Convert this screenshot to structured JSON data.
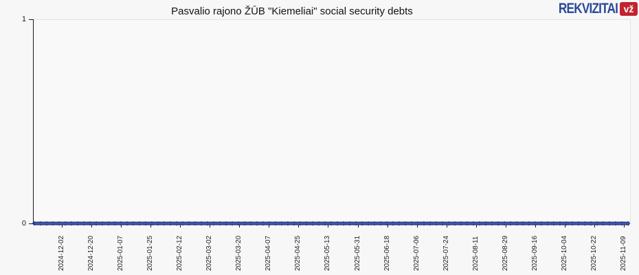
{
  "logo": {
    "brand": "REKVIZITAI",
    "badge": "vž",
    "brand_color": "#2a4a99",
    "badge_color": "#c2232e"
  },
  "chart_data": {
    "type": "line",
    "title": "Pasvalio rajono ŽŪB \"Kiemeliai\" social security debts",
    "categories": [
      "2024-12-02",
      "2024-12-20",
      "2025-01-07",
      "2025-01-25",
      "2025-02-12",
      "2025-03-02",
      "2025-03-20",
      "2025-04-07",
      "2025-04-25",
      "2025-05-13",
      "2025-05-31",
      "2025-06-18",
      "2025-07-06",
      "2025-07-24",
      "2025-08-11",
      "2025-08-29",
      "2025-09-16",
      "2025-10-04",
      "2025-10-22",
      "2025-11-09"
    ],
    "values": [
      0,
      0,
      0,
      0,
      0,
      0,
      0,
      0,
      0,
      0,
      0,
      0,
      0,
      0,
      0,
      0,
      0,
      0,
      0,
      0
    ],
    "xlabel": "",
    "ylabel": "",
    "ylim": [
      0,
      1
    ],
    "yticks": [
      "0",
      "1"
    ],
    "grid": false,
    "legend": "none",
    "line_color": "#4358a8",
    "line_edge_color": "#22337c"
  }
}
